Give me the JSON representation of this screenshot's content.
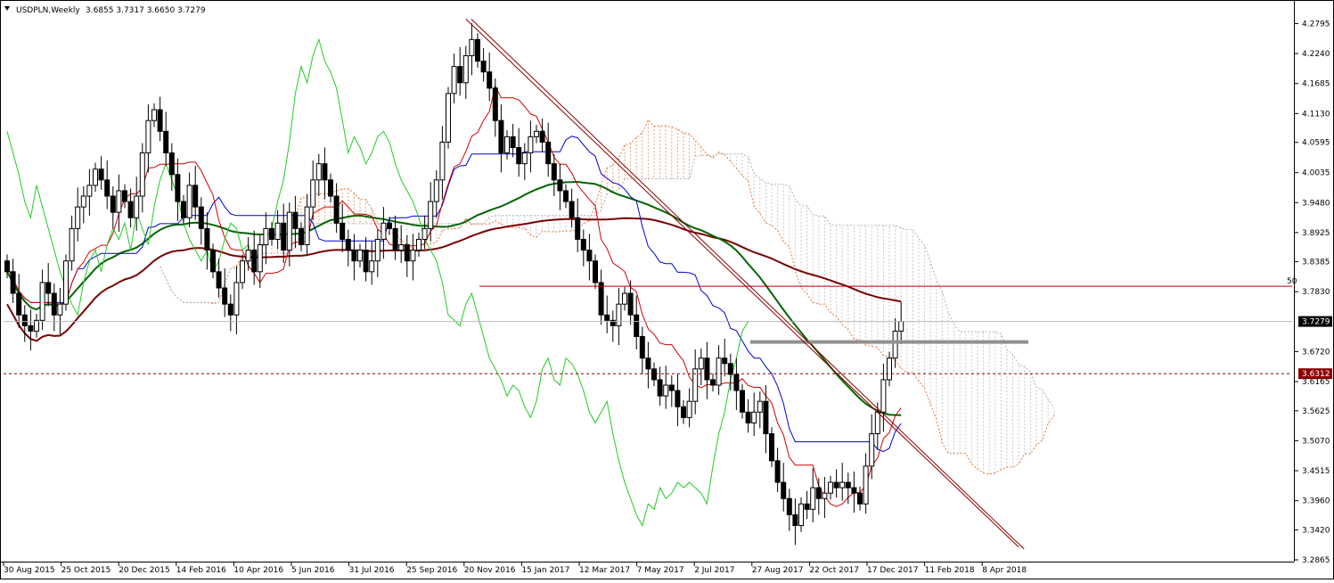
{
  "chart_data": {
    "type": "candlestick",
    "symbol": "USDPLN,Weekly",
    "ohlc_label": "3.6855 3.7317 3.6650 3.7279",
    "y_ticks": [
      4.2795,
      4.224,
      4.1685,
      4.113,
      4.0595,
      4.0035,
      3.948,
      3.8925,
      3.8385,
      3.783,
      3.7279,
      3.672,
      3.6312,
      3.6165,
      3.5625,
      3.507,
      3.4515,
      3.396,
      3.342,
      3.2865
    ],
    "y_tick_labels": [
      "4.2795",
      "4.2240",
      "4.1685",
      "4.1130",
      "4.0595",
      "4.0035",
      "3.9480",
      "3.8925",
      "3.8385",
      "3.7830",
      "3.7279",
      "3.6720",
      "3.6312",
      "3.6165",
      "3.5625",
      "3.5070",
      "3.4515",
      "3.3960",
      "3.3420",
      "3.2865"
    ],
    "x_labels": [
      "30 Aug 2015",
      "25 Oct 2015",
      "20 Dec 2015",
      "14 Feb 2016",
      "10 Apr 2016",
      "5 Jun 2016",
      "31 Jul 2016",
      "25 Sep 2016",
      "20 Nov 2016",
      "15 Jan 2017",
      "12 Mar 2017",
      "7 May 2017",
      "2 Jul 2017",
      "27 Aug 2017",
      "22 Oct 2017",
      "17 Dec 2017",
      "11 Feb 2018",
      "8 Apr 2018"
    ],
    "ylim": [
      3.2865,
      4.31
    ],
    "current_price": 3.7279,
    "current_price_label": "3.7279",
    "support_level": 3.6312,
    "support_label": "3.6312",
    "fib_level": 3.793,
    "fib_label": "50",
    "resistance_zone": 3.69,
    "trendline": {
      "start": [
        78,
        4.288
      ],
      "end": [
        172,
        3.31
      ]
    },
    "closes": [
      3.82,
      3.78,
      3.74,
      3.72,
      3.71,
      3.73,
      3.8,
      3.78,
      3.74,
      3.76,
      3.84,
      3.9,
      3.94,
      3.96,
      3.98,
      4.01,
      3.99,
      3.96,
      3.93,
      3.97,
      3.95,
      3.92,
      3.96,
      4.04,
      4.1,
      4.12,
      4.08,
      4.04,
      4.0,
      3.95,
      3.92,
      3.98,
      3.94,
      3.9,
      3.86,
      3.82,
      3.79,
      3.76,
      3.74,
      3.8,
      3.84,
      3.86,
      3.82,
      3.87,
      3.9,
      3.88,
      3.91,
      3.86,
      3.93,
      3.9,
      3.87,
      3.94,
      3.99,
      4.02,
      3.99,
      3.96,
      3.91,
      3.88,
      3.86,
      3.84,
      3.86,
      3.82,
      3.84,
      3.88,
      3.91,
      3.9,
      3.86,
      3.87,
      3.84,
      3.86,
      3.88,
      3.9,
      3.95,
      3.99,
      4.06,
      4.15,
      4.2,
      4.17,
      4.22,
      4.25,
      4.21,
      4.19,
      4.16,
      4.1,
      4.04,
      4.07,
      4.05,
      4.02,
      4.04,
      4.07,
      4.08,
      4.06,
      4.02,
      3.99,
      3.97,
      3.95,
      3.92,
      3.88,
      3.86,
      3.84,
      3.8,
      3.74,
      3.73,
      3.72,
      3.76,
      3.78,
      3.74,
      3.7,
      3.66,
      3.64,
      3.62,
      3.59,
      3.61,
      3.6,
      3.57,
      3.55,
      3.58,
      3.64,
      3.66,
      3.62,
      3.61,
      3.66,
      3.65,
      3.63,
      3.6,
      3.56,
      3.54,
      3.56,
      3.58,
      3.52,
      3.47,
      3.43,
      3.4,
      3.37,
      3.35,
      3.39,
      3.38,
      3.42,
      3.4,
      3.41,
      3.43,
      3.42,
      3.43,
      3.42,
      3.41,
      3.39,
      3.46,
      3.52,
      3.56,
      3.62,
      3.66,
      3.71,
      3.7279
    ],
    "indicators": [
      {
        "name": "tenkan",
        "color": "#d40000"
      },
      {
        "name": "kijun",
        "color": "#0000cc"
      },
      {
        "name": "chikou",
        "color": "#22cc22"
      },
      {
        "name": "ma50",
        "color": "#006400"
      },
      {
        "name": "ma100",
        "color": "#7a0000"
      },
      {
        "name": "cloud",
        "color": "#e07a3c"
      }
    ]
  }
}
